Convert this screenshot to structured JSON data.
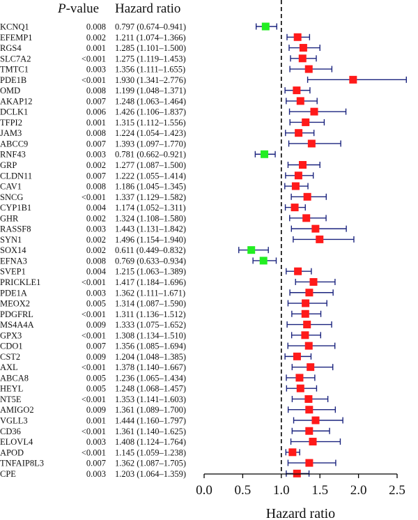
{
  "headers": {
    "pvalue_italic": "P",
    "pvalue_rest": "-value",
    "hazard": "Hazard ratio"
  },
  "chart_data": {
    "type": "forest",
    "xlabel": "Hazard ratio",
    "xlim": [
      0.0,
      2.5
    ],
    "xticks": [
      "0.0",
      "0.5",
      "1.0",
      "1.5",
      "2.0",
      "2.5"
    ],
    "reference_line": 1.0,
    "colors": {
      "high_risk": "#ff1a1a",
      "low_risk": "#22ee22",
      "whisker": "#1a237e",
      "reference": "#000000"
    },
    "rows": [
      {
        "gene": "KCNQ1",
        "p": "0.008",
        "hr_text": "0.797 (0.674–0.941)",
        "hr": 0.797,
        "lo": 0.674,
        "hi": 0.941
      },
      {
        "gene": "EFEMP1",
        "p": "0.002",
        "hr_text": "1.211 (1.074–1.366)",
        "hr": 1.211,
        "lo": 1.074,
        "hi": 1.366
      },
      {
        "gene": "RGS4",
        "p": "0.001",
        "hr_text": "1.285 (1.101–1.500)",
        "hr": 1.285,
        "lo": 1.101,
        "hi": 1.5
      },
      {
        "gene": "SLC7A2",
        "p": "<0.001",
        "hr_text": "1.275 (1.119–1.453)",
        "hr": 1.275,
        "lo": 1.119,
        "hi": 1.453
      },
      {
        "gene": "TMTC1",
        "p": "0.003",
        "hr_text": "1.356 (1.111–1.655)",
        "hr": 1.356,
        "lo": 1.111,
        "hi": 1.655
      },
      {
        "gene": "PDE1B",
        "p": "<0.001",
        "hr_text": "1.930 (1.341–2.776)",
        "hr": 1.93,
        "lo": 1.341,
        "hi": 2.776
      },
      {
        "gene": "OMD",
        "p": "0.008",
        "hr_text": "1.199 (1.048–1.371)",
        "hr": 1.199,
        "lo": 1.048,
        "hi": 1.371
      },
      {
        "gene": "AKAP12",
        "p": "0.007",
        "hr_text": "1.248 (1.063–1.464)",
        "hr": 1.248,
        "lo": 1.063,
        "hi": 1.464
      },
      {
        "gene": "DCLK1",
        "p": "0.006",
        "hr_text": "1.426 (1.106–1.837)",
        "hr": 1.426,
        "lo": 1.106,
        "hi": 1.837
      },
      {
        "gene": "TFPI2",
        "p": "0.001",
        "hr_text": "1.315 (1.112–1.556)",
        "hr": 1.315,
        "lo": 1.112,
        "hi": 1.556
      },
      {
        "gene": "JAM3",
        "p": "0.008",
        "hr_text": "1.224 (1.054–1.423)",
        "hr": 1.224,
        "lo": 1.054,
        "hi": 1.423
      },
      {
        "gene": "ABCC9",
        "p": "0.007",
        "hr_text": "1.393 (1.097–1.770)",
        "hr": 1.393,
        "lo": 1.097,
        "hi": 1.77
      },
      {
        "gene": "RNF43",
        "p": "0.003",
        "hr_text": "0.781 (0.662–0.921)",
        "hr": 0.781,
        "lo": 0.662,
        "hi": 0.921
      },
      {
        "gene": "GRP",
        "p": "0.002",
        "hr_text": "1.277 (1.087–1.500)",
        "hr": 1.277,
        "lo": 1.087,
        "hi": 1.5
      },
      {
        "gene": "CLDN11",
        "p": "0.007",
        "hr_text": "1.222 (1.055–1.414)",
        "hr": 1.222,
        "lo": 1.055,
        "hi": 1.414
      },
      {
        "gene": "CAV1",
        "p": "0.008",
        "hr_text": "1.186 (1.045–1.345)",
        "hr": 1.186,
        "lo": 1.045,
        "hi": 1.345
      },
      {
        "gene": "SNCG",
        "p": "<0.001",
        "hr_text": "1.337 (1.129–1.582)",
        "hr": 1.337,
        "lo": 1.129,
        "hi": 1.582
      },
      {
        "gene": "CYP1B1",
        "p": "0.004",
        "hr_text": "1.174 (1.052–1.311)",
        "hr": 1.174,
        "lo": 1.052,
        "hi": 1.311
      },
      {
        "gene": "GHR",
        "p": "0.002",
        "hr_text": "1.324 (1.108–1.580)",
        "hr": 1.324,
        "lo": 1.108,
        "hi": 1.58
      },
      {
        "gene": "RASSF8",
        "p": "0.003",
        "hr_text": "1.443 (1.131–1.842)",
        "hr": 1.443,
        "lo": 1.131,
        "hi": 1.842
      },
      {
        "gene": "SYN1",
        "p": "0.002",
        "hr_text": "1.496 (1.154–1.940)",
        "hr": 1.496,
        "lo": 1.154,
        "hi": 1.94
      },
      {
        "gene": "SOX14",
        "p": "0.002",
        "hr_text": "0.611 (0.449–0.832)",
        "hr": 0.611,
        "lo": 0.449,
        "hi": 0.832
      },
      {
        "gene": "EFNA3",
        "p": "0.008",
        "hr_text": "0.769 (0.633–0.934)",
        "hr": 0.769,
        "lo": 0.633,
        "hi": 0.934
      },
      {
        "gene": "SVEP1",
        "p": "0.004",
        "hr_text": "1.215 (1.063–1.389)",
        "hr": 1.215,
        "lo": 1.063,
        "hi": 1.389
      },
      {
        "gene": "PRICKLE1",
        "p": "<0.001",
        "hr_text": "1.417 (1.184–1.696)",
        "hr": 1.417,
        "lo": 1.184,
        "hi": 1.696
      },
      {
        "gene": "PDE1A",
        "p": "0.003",
        "hr_text": "1.362 (1.111–1.671)",
        "hr": 1.362,
        "lo": 1.111,
        "hi": 1.671
      },
      {
        "gene": "MEOX2",
        "p": "0.005",
        "hr_text": "1.314 (1.087–1.590)",
        "hr": 1.314,
        "lo": 1.087,
        "hi": 1.59
      },
      {
        "gene": "PDGFRL",
        "p": "<0.001",
        "hr_text": "1.311 (1.136–1.512)",
        "hr": 1.311,
        "lo": 1.136,
        "hi": 1.512
      },
      {
        "gene": "MS4A4A",
        "p": "0.009",
        "hr_text": "1.333 (1.075–1.652)",
        "hr": 1.333,
        "lo": 1.075,
        "hi": 1.652
      },
      {
        "gene": "GPX3",
        "p": "<0.001",
        "hr_text": "1.308 (1.134–1.510)",
        "hr": 1.308,
        "lo": 1.134,
        "hi": 1.51
      },
      {
        "gene": "CDO1",
        "p": "0.007",
        "hr_text": "1.356 (1.085–1.694)",
        "hr": 1.356,
        "lo": 1.085,
        "hi": 1.694
      },
      {
        "gene": "CST2",
        "p": "0.009",
        "hr_text": "1.204 (1.048–1.385)",
        "hr": 1.204,
        "lo": 1.048,
        "hi": 1.385
      },
      {
        "gene": "AXL",
        "p": "<0.001",
        "hr_text": "1.378 (1.140–1.667)",
        "hr": 1.378,
        "lo": 1.14,
        "hi": 1.667
      },
      {
        "gene": "ABCA8",
        "p": "0.005",
        "hr_text": "1.236 (1.065–1.434)",
        "hr": 1.236,
        "lo": 1.065,
        "hi": 1.434
      },
      {
        "gene": "HEYL",
        "p": "0.005",
        "hr_text": "1.248 (1.068–1.457)",
        "hr": 1.248,
        "lo": 1.068,
        "hi": 1.457
      },
      {
        "gene": "NT5E",
        "p": "<0.001",
        "hr_text": "1.353 (1.141–1.603)",
        "hr": 1.353,
        "lo": 1.141,
        "hi": 1.603
      },
      {
        "gene": "AMIGO2",
        "p": "0.009",
        "hr_text": "1.361 (1.089–1.700)",
        "hr": 1.361,
        "lo": 1.089,
        "hi": 1.7
      },
      {
        "gene": "VGLL3",
        "p": "0.001",
        "hr_text": "1.444 (1.160–1.797)",
        "hr": 1.444,
        "lo": 1.16,
        "hi": 1.797
      },
      {
        "gene": "CD36",
        "p": "<0.001",
        "hr_text": "1.361 (1.140–1.625)",
        "hr": 1.361,
        "lo": 1.14,
        "hi": 1.625
      },
      {
        "gene": "ELOVL4",
        "p": "0.003",
        "hr_text": "1.408 (1.124–1.764)",
        "hr": 1.408,
        "lo": 1.124,
        "hi": 1.764
      },
      {
        "gene": "APOD",
        "p": "<0.001",
        "hr_text": "1.145 (1.059–1.238)",
        "hr": 1.145,
        "lo": 1.059,
        "hi": 1.238
      },
      {
        "gene": "TNFAIP8L3",
        "p": "0.007",
        "hr_text": "1.362 (1.087–1.705)",
        "hr": 1.362,
        "lo": 1.087,
        "hi": 1.705
      },
      {
        "gene": "CPE",
        "p": "0.003",
        "hr_text": "1.203 (1.064–1.359)",
        "hr": 1.203,
        "lo": 1.064,
        "hi": 1.359
      }
    ]
  }
}
